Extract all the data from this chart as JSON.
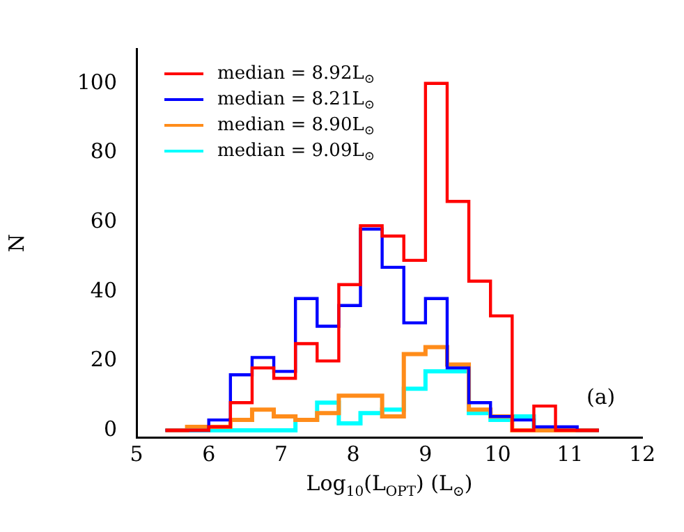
{
  "chart_data": {
    "type": "histogram",
    "xlabel": "Log$_{10}$(L$_{OPT}$)  (L$_{⊙}$)",
    "ylabel": "N",
    "bins": [
      5.4,
      5.7,
      6.0,
      6.3,
      6.6,
      6.9,
      7.2,
      7.5,
      7.8,
      8.1,
      8.4,
      8.7,
      9.0,
      9.3,
      9.6,
      9.9,
      10.2,
      10.5,
      10.8,
      11.1,
      11.4
    ],
    "series": [
      {
        "name": "median = 8.92L$_{⊙}$",
        "color": "#ff0000",
        "values": [
          0,
          0,
          1,
          8,
          18,
          15,
          25,
          20,
          42,
          59,
          56,
          49,
          100,
          66,
          43,
          33,
          0,
          7,
          0,
          0
        ]
      },
      {
        "name": "median = 8.21L$_{⊙}$",
        "color": "#0000ff",
        "values": [
          0,
          0,
          3,
          16,
          21,
          17,
          38,
          30,
          36,
          58,
          47,
          31,
          38,
          18,
          8,
          4,
          3,
          1,
          1,
          0
        ]
      },
      {
        "name": "median = 8.90L$_{⊙}$",
        "color": "#ff8c1a",
        "values": [
          0,
          1,
          1,
          3,
          6,
          4,
          3,
          5,
          10,
          10,
          4,
          22,
          24,
          19,
          6,
          4,
          0,
          0,
          0,
          0
        ]
      },
      {
        "name": "median = 9.09L$_{⊙}$",
        "color": "#00ffff",
        "values": [
          0,
          0,
          0,
          0,
          0,
          0,
          3,
          8,
          2,
          5,
          6,
          12,
          17,
          17,
          5,
          3,
          4,
          0,
          0,
          0
        ]
      }
    ],
    "xlim": [
      5,
      12
    ],
    "xticks": [
      5,
      6,
      7,
      8,
      9,
      10,
      11,
      12
    ],
    "ylim": [
      -2,
      110
    ],
    "yticks": [
      0,
      20,
      40,
      60,
      80,
      100
    ],
    "legend": "top left",
    "annotations": [
      "(a)"
    ]
  }
}
